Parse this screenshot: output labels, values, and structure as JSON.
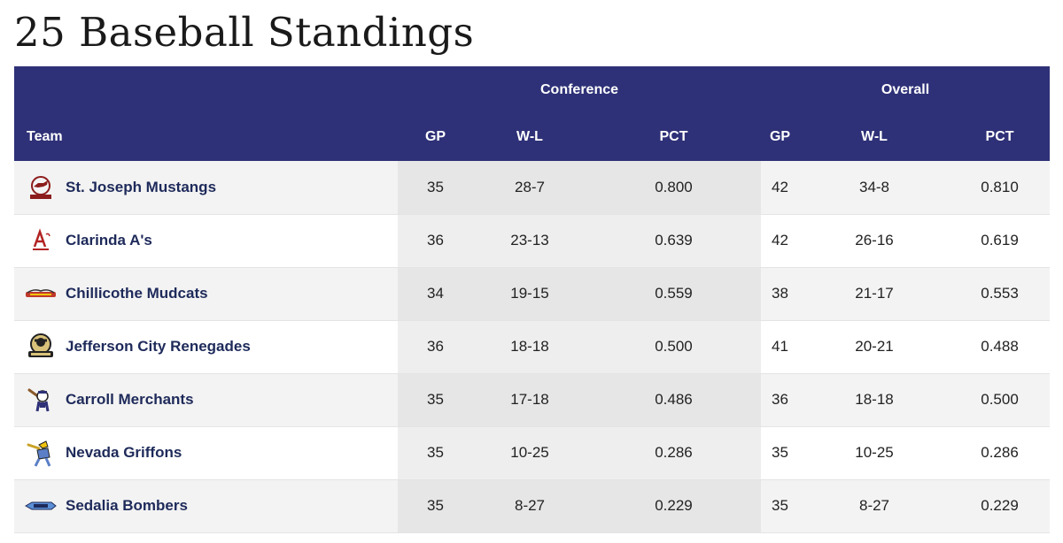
{
  "title": "25 Baseball Standings",
  "groups": {
    "conference": "Conference",
    "overall": "Overall"
  },
  "headers": {
    "team": "Team",
    "conf_gp": "GP",
    "conf_wl": "W-L",
    "conf_pct": "PCT",
    "ov_gp": "GP",
    "ov_wl": "W-L",
    "ov_pct": "PCT"
  },
  "teams": [
    {
      "name": "St. Joseph Mustangs",
      "logo": "mustang-logo-icon",
      "conf_gp": "35",
      "conf_wl": "28-7",
      "conf_pct": "0.800",
      "ov_gp": "42",
      "ov_wl": "34-8",
      "ov_pct": "0.810"
    },
    {
      "name": "Clarinda A's",
      "logo": "clarinda-logo-icon",
      "conf_gp": "36",
      "conf_wl": "23-13",
      "conf_pct": "0.639",
      "ov_gp": "42",
      "ov_wl": "26-16",
      "ov_pct": "0.619"
    },
    {
      "name": "Chillicothe Mudcats",
      "logo": "mudcats-logo-icon",
      "conf_gp": "34",
      "conf_wl": "19-15",
      "conf_pct": "0.559",
      "ov_gp": "38",
      "ov_wl": "21-17",
      "ov_pct": "0.553"
    },
    {
      "name": "Jefferson City Renegades",
      "logo": "renegades-logo-icon",
      "conf_gp": "36",
      "conf_wl": "18-18",
      "conf_pct": "0.500",
      "ov_gp": "41",
      "ov_wl": "20-21",
      "ov_pct": "0.488"
    },
    {
      "name": "Carroll Merchants",
      "logo": "merchants-logo-icon",
      "conf_gp": "35",
      "conf_wl": "17-18",
      "conf_pct": "0.486",
      "ov_gp": "36",
      "ov_wl": "18-18",
      "ov_pct": "0.500"
    },
    {
      "name": "Nevada Griffons",
      "logo": "griffons-logo-icon",
      "conf_gp": "35",
      "conf_wl": "10-25",
      "conf_pct": "0.286",
      "ov_gp": "35",
      "ov_wl": "10-25",
      "ov_pct": "0.286"
    },
    {
      "name": "Sedalia Bombers",
      "logo": "bombers-logo-icon",
      "conf_gp": "35",
      "conf_wl": "8-27",
      "conf_pct": "0.229",
      "ov_gp": "35",
      "ov_wl": "8-27",
      "ov_pct": "0.229"
    }
  ]
}
